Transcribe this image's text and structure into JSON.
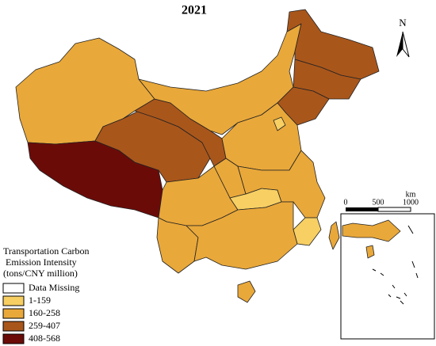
{
  "title": "2021",
  "north_label": "N",
  "scale_bar": {
    "unit": "km",
    "labels": [
      "0",
      "500",
      "1000"
    ]
  },
  "legend": {
    "title_lines": [
      "Transportation Carbon",
      " Emission Intensity",
      "(tons/CNY million)"
    ],
    "items": [
      {
        "label": "Data Missing",
        "color": "#ffffff"
      },
      {
        "label": "1-159",
        "color": "#f7cf63"
      },
      {
        "label": "160-258",
        "color": "#e9a83a"
      },
      {
        "label": "259-407",
        "color": "#a9561b"
      },
      {
        "label": "408-568",
        "color": "#6b0b08"
      }
    ]
  }
}
